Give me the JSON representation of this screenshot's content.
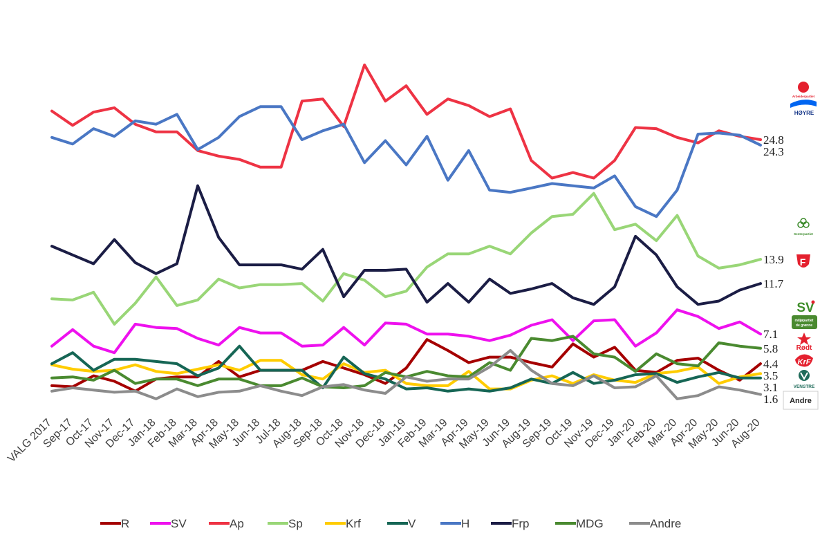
{
  "chart_data": {
    "type": "line",
    "title": "",
    "xlabel": "",
    "ylabel": "",
    "ylim": [
      0,
      36
    ],
    "categories": [
      "VALG 2017",
      "Sep-17",
      "Oct-17",
      "Nov-17",
      "Dec-17",
      "Jan-18",
      "Feb-18",
      "Mar-18",
      "Apr-18",
      "May-18",
      "Jun-18",
      "Jul-18",
      "Aug-18",
      "Sep-18",
      "Oct-18",
      "Nov-18",
      "Dec-18",
      "Jan-19",
      "Feb-19",
      "Mar-19",
      "Apr-19",
      "May-19",
      "Jun-19",
      "Aug-19",
      "Sep-19",
      "Oct-19",
      "Nov-19",
      "Dec-19",
      "Jan-20",
      "Feb-20",
      "Mar-20",
      "Apr-20",
      "May-20",
      "Jun-20",
      "Aug-20"
    ],
    "series": [
      {
        "name": "R",
        "color": "#a50000",
        "end_label": "4.4",
        "values": [
          2.4,
          2.3,
          3.3,
          2.8,
          1.9,
          3.0,
          3.2,
          3.2,
          4.6,
          3.2,
          3.8,
          3.8,
          3.8,
          4.6,
          4.0,
          3.4,
          2.6,
          4.0,
          6.6,
          5.6,
          4.5,
          5.0,
          5.0,
          4.5,
          4.1,
          6.2,
          5.0,
          5.9,
          3.8,
          3.6,
          4.7,
          4.9,
          3.8,
          2.9,
          4.4
        ]
      },
      {
        "name": "SV",
        "color": "#ee11ee",
        "end_label": "7.1",
        "values": [
          6.0,
          7.5,
          6.0,
          5.4,
          8.0,
          7.7,
          7.6,
          6.7,
          6.1,
          7.7,
          7.2,
          7.2,
          6.0,
          6.1,
          7.7,
          6.1,
          8.1,
          8.0,
          7.1,
          7.1,
          6.9,
          6.5,
          7.0,
          7.9,
          8.4,
          6.5,
          8.3,
          8.4,
          6.0,
          7.2,
          9.3,
          8.7,
          7.6,
          8.2,
          7.1
        ]
      },
      {
        "name": "Ap",
        "color": "#ee3344",
        "end_label": "24.8",
        "values": [
          27.4,
          26.1,
          27.3,
          27.7,
          26.2,
          25.5,
          25.5,
          23.8,
          23.3,
          23.0,
          22.3,
          22.3,
          28.3,
          28.5,
          26.0,
          31.6,
          28.3,
          29.7,
          27.1,
          28.5,
          27.9,
          26.9,
          27.6,
          22.9,
          21.3,
          21.8,
          21.3,
          22.9,
          25.9,
          25.8,
          25.0,
          24.5,
          25.6,
          25.1,
          24.8
        ]
      },
      {
        "name": "Sp",
        "color": "#99d677",
        "end_label": "13.9",
        "values": [
          10.3,
          10.2,
          10.9,
          8.0,
          9.9,
          12.3,
          9.7,
          10.2,
          12.1,
          11.3,
          11.6,
          11.6,
          11.7,
          10.1,
          12.6,
          12.0,
          10.5,
          11.0,
          13.2,
          14.4,
          14.4,
          15.1,
          14.4,
          16.3,
          17.8,
          18.0,
          19.9,
          16.6,
          17.1,
          15.6,
          17.9,
          14.2,
          13.1,
          13.4,
          13.9
        ]
      },
      {
        "name": "Krf",
        "color": "#ffcc00",
        "end_label": "3.5",
        "values": [
          4.3,
          3.9,
          3.7,
          3.8,
          4.3,
          3.7,
          3.5,
          3.9,
          4.3,
          3.8,
          4.7,
          4.7,
          3.4,
          3.0,
          4.4,
          3.6,
          3.8,
          2.6,
          2.4,
          2.4,
          3.7,
          2.1,
          2.1,
          2.9,
          3.3,
          2.6,
          3.4,
          2.9,
          2.7,
          3.5,
          3.7,
          4.1,
          2.6,
          3.2,
          3.5
        ]
      },
      {
        "name": "V",
        "color": "#166655",
        "end_label": "3.1",
        "values": [
          4.4,
          5.4,
          3.8,
          4.8,
          4.8,
          4.6,
          4.4,
          3.3,
          4.0,
          6.0,
          3.8,
          3.8,
          3.8,
          2.2,
          5.0,
          3.5,
          3.0,
          2.1,
          2.2,
          1.9,
          2.1,
          1.9,
          2.2,
          3.0,
          2.6,
          3.6,
          2.6,
          2.9,
          3.4,
          3.5,
          2.7,
          3.2,
          3.6,
          3.1,
          3.1
        ]
      },
      {
        "name": "H",
        "color": "#4a77c4",
        "end_label": "24.3",
        "values": [
          25.0,
          24.4,
          25.8,
          25.1,
          26.5,
          26.2,
          27.1,
          23.9,
          25.0,
          26.9,
          27.8,
          27.8,
          24.8,
          25.6,
          26.2,
          22.7,
          24.7,
          22.5,
          25.1,
          21.1,
          23.8,
          20.2,
          20.0,
          20.4,
          20.8,
          20.6,
          20.4,
          21.5,
          18.7,
          17.8,
          20.2,
          25.3,
          25.4,
          25.2,
          24.3
        ]
      },
      {
        "name": "Frp",
        "color": "#1b1d45",
        "end_label": "11.7",
        "values": [
          15.1,
          14.3,
          13.5,
          15.7,
          13.6,
          12.6,
          13.5,
          20.6,
          15.9,
          13.4,
          13.4,
          13.4,
          13.0,
          14.8,
          10.5,
          12.9,
          12.9,
          13.0,
          10.0,
          11.7,
          10.0,
          12.1,
          10.8,
          11.2,
          11.7,
          10.4,
          9.8,
          11.4,
          16.0,
          14.3,
          11.4,
          9.8,
          10.1,
          11.1,
          11.7
        ]
      },
      {
        "name": "MDG",
        "color": "#4a8a30",
        "end_label": "5.8",
        "values": [
          3.1,
          3.2,
          2.9,
          3.8,
          2.6,
          3.0,
          3.0,
          2.4,
          3.0,
          3.0,
          2.4,
          2.4,
          3.1,
          2.3,
          2.2,
          2.4,
          3.6,
          3.2,
          3.7,
          3.3,
          3.2,
          4.5,
          3.8,
          6.7,
          6.5,
          6.9,
          5.3,
          5.0,
          3.7,
          5.3,
          4.4,
          4.2,
          6.3,
          6.0,
          5.8
        ]
      },
      {
        "name": "Andre",
        "color": "#8c8c8c",
        "end_label": "1.6",
        "values": [
          1.9,
          2.2,
          2.0,
          1.8,
          1.9,
          1.2,
          2.1,
          1.4,
          1.8,
          1.9,
          2.4,
          1.9,
          1.5,
          2.3,
          2.5,
          2.0,
          1.7,
          3.2,
          2.8,
          3.0,
          3.0,
          4.1,
          5.6,
          3.8,
          2.6,
          2.4,
          3.3,
          2.2,
          2.3,
          3.3,
          1.2,
          1.5,
          2.3,
          2.0,
          1.6
        ]
      }
    ],
    "legend_position": "bottom",
    "grid": false
  },
  "logos": {
    "ap": "Arbeiderpartiet",
    "h": "HØYRE",
    "sp": "Senterpartiet",
    "frp": "F",
    "sv": "SV",
    "mdg_top": "miljøpartiet",
    "mdg_bottom": "de grønne",
    "r": "Rødt",
    "krf": "KrF",
    "v": "VENSTRE",
    "andre": "Andre"
  }
}
